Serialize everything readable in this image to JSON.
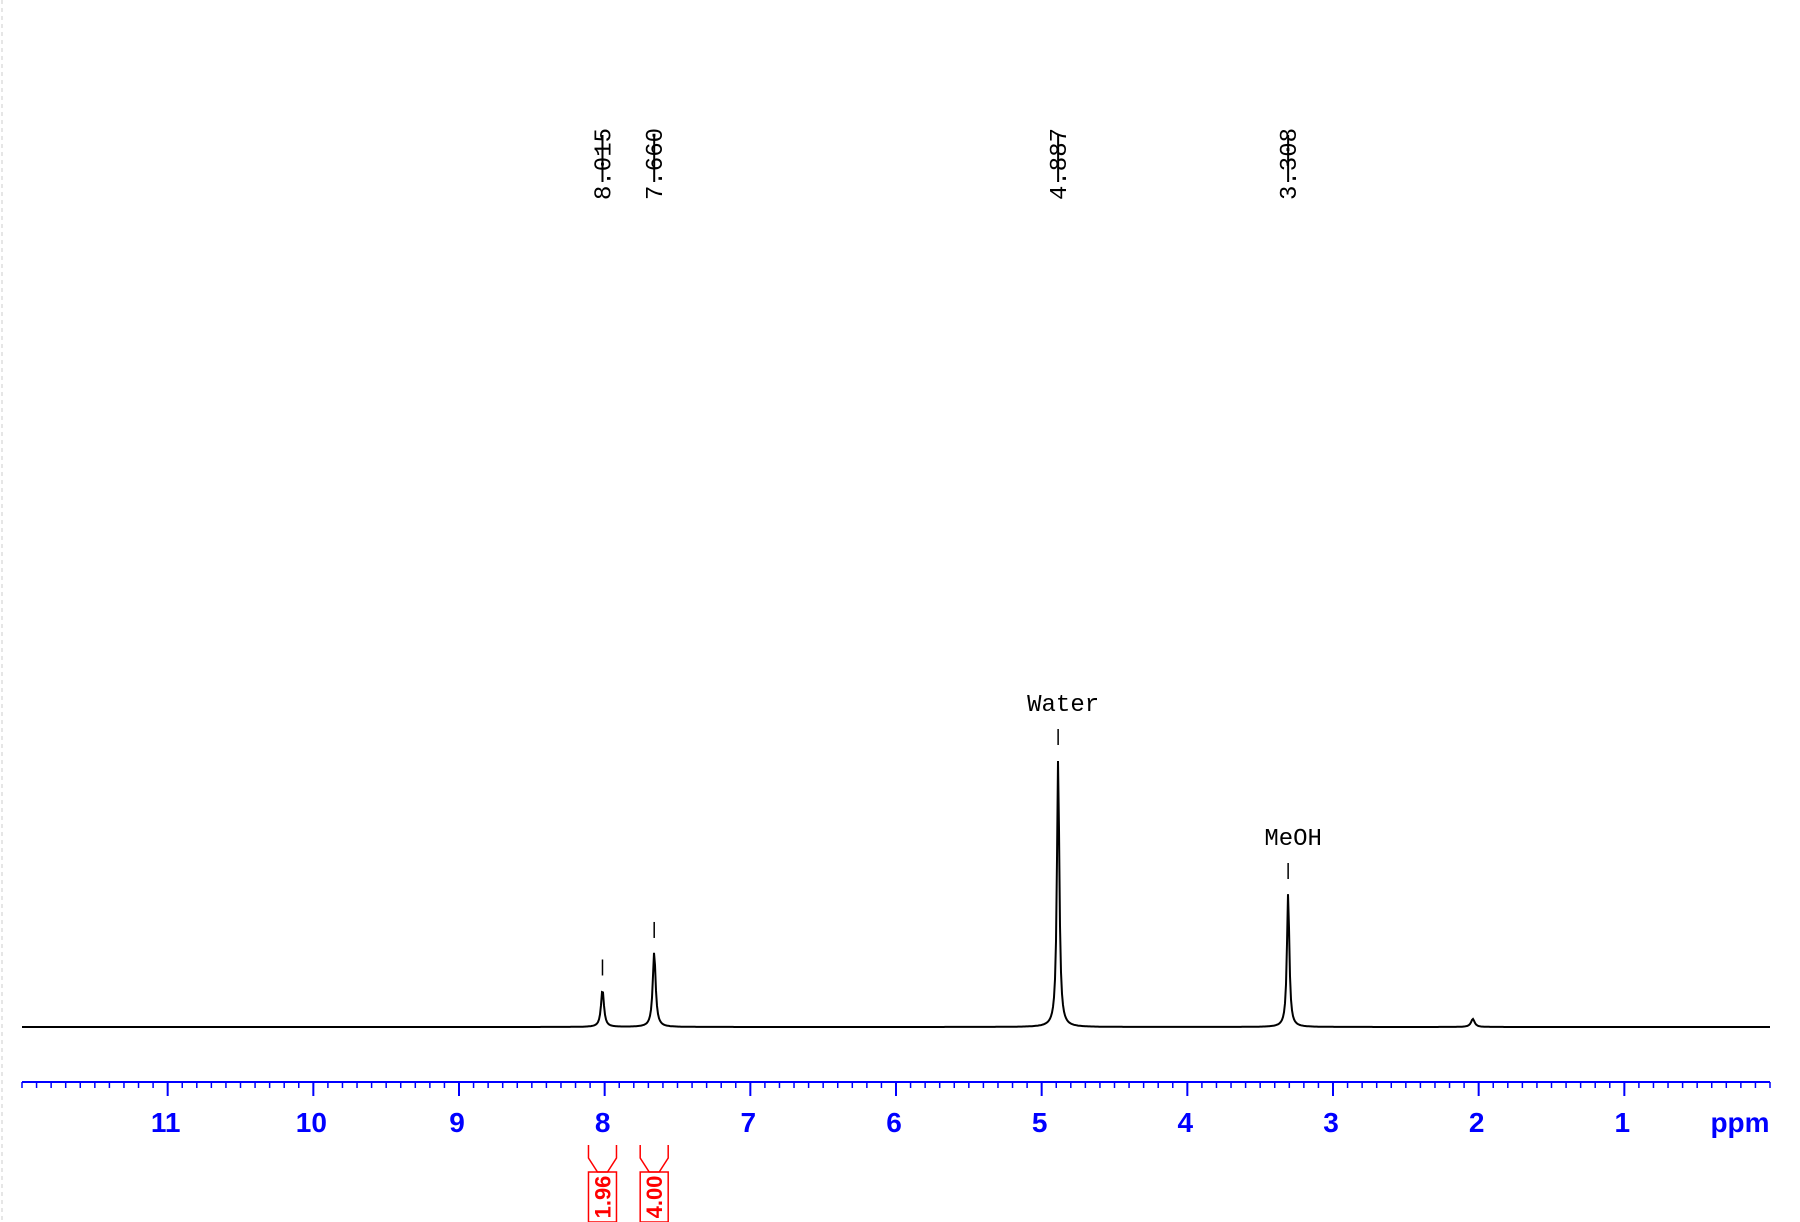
{
  "chart_data": {
    "type": "line",
    "xlabel": "ppm",
    "xlim": [
      12.0,
      0.0
    ],
    "x_reversed": true,
    "x_ticks": [
      11,
      10,
      9,
      8,
      7,
      6,
      5,
      4,
      3,
      2,
      1
    ],
    "grid": false,
    "peak_labels": [
      "8.015",
      "7.660",
      "4.887",
      "3.308"
    ],
    "peaks": [
      {
        "ppm": 8.015,
        "rel_height": 0.14
      },
      {
        "ppm": 7.66,
        "rel_height": 0.28
      },
      {
        "ppm": 4.887,
        "rel_height": 1.0
      },
      {
        "ppm": 3.308,
        "rel_height": 0.5
      },
      {
        "ppm": 2.04,
        "rel_height": 0.03
      }
    ],
    "annotations": [
      {
        "text": "Water",
        "ppm": 4.887
      },
      {
        "text": "MeOH",
        "ppm": 3.308
      }
    ],
    "integrals": [
      {
        "ppm": 8.015,
        "value": "1.96"
      },
      {
        "ppm": 7.66,
        "value": "4.00"
      }
    ],
    "colors": {
      "spectrum": "#000000",
      "axis": "#0000ff",
      "integral": "#ff0000"
    }
  }
}
